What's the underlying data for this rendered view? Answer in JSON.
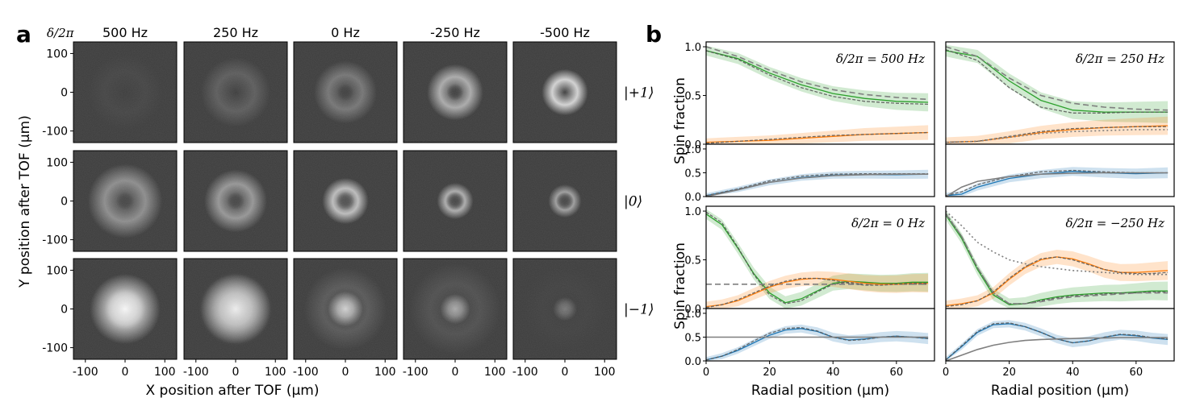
{
  "panel_a": {
    "letter": "a",
    "corner_label": "δ/2π",
    "columns": [
      "500 Hz",
      "250 Hz",
      "0 Hz",
      "-250 Hz",
      "-500 Hz"
    ],
    "rows": [
      "|+1⟩",
      "|0⟩",
      "|−1⟩"
    ],
    "xlabel": "X position after TOF (μm)",
    "ylabel": "Y position after TOF (μm)",
    "xticks": [
      -100,
      0,
      100
    ],
    "yticks": [
      100,
      0,
      -100
    ],
    "images": [
      [
        {
          "core": 0.0,
          "ring": 0.04,
          "ring_r": 0.45
        },
        {
          "core": 0.0,
          "ring": 0.18,
          "ring_r": 0.42
        },
        {
          "core": 0.02,
          "ring": 0.32,
          "ring_r": 0.38
        },
        {
          "core": 0.02,
          "ring": 0.62,
          "ring_r": 0.34
        },
        {
          "core": 0.0,
          "ring": 0.85,
          "ring_r": 0.28
        }
      ],
      [
        {
          "core": 0.05,
          "ring": 0.45,
          "ring_r": 0.45
        },
        {
          "core": 0.05,
          "ring": 0.5,
          "ring_r": 0.38
        },
        {
          "core": 0.1,
          "ring": 0.72,
          "ring_r": 0.28
        },
        {
          "core": 0.05,
          "ring": 0.62,
          "ring_r": 0.22
        },
        {
          "core": 0.05,
          "ring": 0.55,
          "ring_r": 0.2
        }
      ],
      [
        {
          "core": 0.95,
          "ring": 0.25,
          "ring_r": 0.25
        },
        {
          "core": 0.9,
          "ring": 0.15,
          "ring_r": 0.45
        },
        {
          "core": 0.75,
          "ring": 0.15,
          "ring_r": 0.5
        },
        {
          "core": 0.55,
          "ring": 0.1,
          "ring_r": 0.55
        },
        {
          "core": 0.3,
          "ring": 0.02,
          "ring_r": 0.5
        }
      ]
    ]
  },
  "panel_b": {
    "letter": "b",
    "xlabel": "Radial position (μm)",
    "ylabel": "Spin fraction",
    "colors": {
      "green": "#2ca02c",
      "orange": "#ff7f0e",
      "blue": "#1f77b4",
      "gray": "#7f7f7f"
    }
  },
  "chart_data": [
    {
      "type": "line",
      "title": "δ/2π = 500 Hz",
      "xlabel": "",
      "ylabel": "Spin fraction",
      "xlim": [
        0,
        72
      ],
      "ylim": [
        0,
        1.05
      ],
      "yticks": [
        0.0,
        0.5,
        1.0
      ],
      "x": [
        0,
        10,
        20,
        30,
        40,
        50,
        60,
        70
      ],
      "series": [
        {
          "color": "green",
          "style": "solid",
          "band": 0.05,
          "values": [
            0.96,
            0.88,
            0.73,
            0.61,
            0.52,
            0.47,
            0.44,
            0.43
          ]
        },
        {
          "color": "green",
          "style": "dashed",
          "values": [
            0.96,
            0.87,
            0.71,
            0.58,
            0.49,
            0.44,
            0.42,
            0.41
          ]
        },
        {
          "color": "gray",
          "style": "dashed",
          "values": [
            1.0,
            0.9,
            0.76,
            0.64,
            0.56,
            0.51,
            0.48,
            0.46
          ]
        },
        {
          "color": "orange",
          "style": "solid",
          "band": 0.04,
          "values": [
            0.02,
            0.03,
            0.04,
            0.06,
            0.08,
            0.1,
            0.11,
            0.12
          ]
        },
        {
          "color": "orange",
          "style": "dashed",
          "values": [
            0.01,
            0.03,
            0.05,
            0.07,
            0.09,
            0.1,
            0.11,
            0.12
          ]
        }
      ]
    },
    {
      "type": "line",
      "title": "δ/2π = 250 Hz",
      "xlabel": "",
      "ylabel": "",
      "xlim": [
        0,
        72
      ],
      "ylim": [
        0,
        1.05
      ],
      "x": [
        0,
        10,
        20,
        30,
        40,
        50,
        60,
        70
      ],
      "series": [
        {
          "color": "green",
          "style": "solid",
          "band": 0.06,
          "values": [
            0.96,
            0.9,
            0.65,
            0.45,
            0.35,
            0.33,
            0.33,
            0.33
          ]
        },
        {
          "color": "green",
          "style": "dashed",
          "values": [
            0.97,
            0.86,
            0.58,
            0.38,
            0.32,
            0.32,
            0.33,
            0.33
          ]
        },
        {
          "color": "gray",
          "style": "dashed",
          "values": [
            1.0,
            0.9,
            0.68,
            0.5,
            0.42,
            0.38,
            0.36,
            0.35
          ]
        },
        {
          "color": "orange",
          "style": "solid",
          "band": 0.05,
          "values": [
            0.02,
            0.03,
            0.07,
            0.12,
            0.15,
            0.17,
            0.18,
            0.19
          ]
        },
        {
          "color": "orange",
          "style": "dashed",
          "values": [
            0.02,
            0.03,
            0.08,
            0.13,
            0.16,
            0.17,
            0.18,
            0.18
          ]
        },
        {
          "color": "gray",
          "style": "dotted",
          "values": [
            0.02,
            0.03,
            0.07,
            0.11,
            0.13,
            0.14,
            0.15,
            0.15
          ]
        }
      ]
    },
    {
      "type": "line",
      "title": "",
      "xlabel": "",
      "ylabel": "",
      "xlim": [
        0,
        72
      ],
      "ylim": [
        0,
        1.1
      ],
      "yticks": [
        0.0,
        0.5,
        1.0
      ],
      "x": [
        0,
        10,
        20,
        30,
        40,
        50,
        60,
        70
      ],
      "series": [
        {
          "color": "blue",
          "style": "solid",
          "band": 0.05,
          "values": [
            0.02,
            0.15,
            0.3,
            0.4,
            0.45,
            0.46,
            0.46,
            0.47
          ]
        },
        {
          "color": "blue",
          "style": "dashed",
          "values": [
            0.02,
            0.16,
            0.33,
            0.43,
            0.47,
            0.48,
            0.48,
            0.48
          ]
        },
        {
          "color": "gray",
          "style": "solid",
          "values": [
            0.0,
            0.14,
            0.3,
            0.39,
            0.44,
            0.46,
            0.47,
            0.47
          ]
        }
      ]
    },
    {
      "type": "line",
      "title": "",
      "xlabel": "",
      "ylabel": "",
      "xlim": [
        0,
        72
      ],
      "ylim": [
        0,
        1.1
      ],
      "x": [
        0,
        5,
        10,
        20,
        30,
        40,
        50,
        60,
        70
      ],
      "series": [
        {
          "color": "blue",
          "style": "solid",
          "band": 0.06,
          "values": [
            0.02,
            0.05,
            0.2,
            0.38,
            0.47,
            0.53,
            0.5,
            0.48,
            0.5
          ]
        },
        {
          "color": "blue",
          "style": "dashed",
          "values": [
            0.02,
            0.1,
            0.25,
            0.42,
            0.52,
            0.55,
            0.52,
            0.5,
            0.5
          ]
        },
        {
          "color": "gray",
          "style": "solid",
          "values": [
            0.0,
            0.2,
            0.32,
            0.42,
            0.47,
            0.49,
            0.5,
            0.5,
            0.5
          ]
        }
      ]
    },
    {
      "type": "line",
      "title": "δ/2π = 0 Hz",
      "xlabel": "",
      "ylabel": "Spin fraction",
      "xlim": [
        0,
        72
      ],
      "ylim": [
        0,
        1.05
      ],
      "yticks": [
        0.0,
        0.5,
        1.0
      ],
      "x": [
        0,
        5,
        10,
        15,
        20,
        25,
        30,
        35,
        40,
        45,
        50,
        55,
        60,
        65,
        70
      ],
      "series": [
        {
          "color": "green",
          "style": "solid",
          "band": 0.05,
          "values": [
            0.97,
            0.86,
            0.62,
            0.36,
            0.16,
            0.06,
            0.1,
            0.18,
            0.26,
            0.28,
            0.27,
            0.26,
            0.26,
            0.27,
            0.27
          ]
        },
        {
          "color": "green",
          "style": "dashed",
          "values": [
            0.99,
            0.88,
            0.63,
            0.35,
            0.14,
            0.05,
            0.08,
            0.17,
            0.25,
            0.27,
            0.26,
            0.25,
            0.25,
            0.25,
            0.25
          ]
        },
        {
          "color": "gray",
          "style": "dashed",
          "values": [
            0.25,
            0.25,
            0.25,
            0.25,
            0.25,
            0.25,
            0.25,
            0.25,
            0.25,
            0.25,
            0.25,
            0.25,
            0.25,
            0.25,
            0.25
          ]
        },
        {
          "color": "orange",
          "style": "solid",
          "band": 0.05,
          "values": [
            0.02,
            0.04,
            0.08,
            0.15,
            0.22,
            0.27,
            0.3,
            0.31,
            0.3,
            0.28,
            0.26,
            0.25,
            0.25,
            0.26,
            0.26
          ]
        },
        {
          "color": "orange",
          "style": "dashed",
          "values": [
            0.01,
            0.04,
            0.09,
            0.16,
            0.23,
            0.28,
            0.31,
            0.31,
            0.29,
            0.26,
            0.24,
            0.24,
            0.25,
            0.26,
            0.26
          ]
        }
      ]
    },
    {
      "type": "line",
      "title": "δ/2π = −250 Hz",
      "xlabel": "",
      "ylabel": "",
      "xlim": [
        0,
        72
      ],
      "ylim": [
        0,
        1.05
      ],
      "x": [
        0,
        5,
        10,
        15,
        20,
        25,
        30,
        35,
        40,
        45,
        50,
        55,
        60,
        65,
        70
      ],
      "series": [
        {
          "color": "green",
          "style": "solid",
          "band": 0.05,
          "values": [
            0.96,
            0.72,
            0.4,
            0.14,
            0.04,
            0.05,
            0.09,
            0.12,
            0.14,
            0.15,
            0.16,
            0.16,
            0.17,
            0.18,
            0.18
          ]
        },
        {
          "color": "green",
          "style": "dashed",
          "values": [
            0.98,
            0.74,
            0.42,
            0.16,
            0.05,
            0.05,
            0.08,
            0.11,
            0.13,
            0.14,
            0.15,
            0.16,
            0.16,
            0.17,
            0.17
          ]
        },
        {
          "color": "gray",
          "style": "dotted",
          "values": [
            1.0,
            0.85,
            0.68,
            0.58,
            0.5,
            0.46,
            0.43,
            0.41,
            0.39,
            0.38,
            0.37,
            0.36,
            0.35,
            0.35,
            0.35
          ]
        },
        {
          "color": "gray",
          "style": "dashed",
          "values": [
            0.97,
            0.74,
            0.42,
            0.16,
            0.05,
            0.05,
            0.07,
            0.1,
            0.12,
            0.13,
            0.14,
            0.15,
            0.16,
            0.16,
            0.16
          ]
        },
        {
          "color": "orange",
          "style": "solid",
          "band": 0.05,
          "values": [
            0.03,
            0.05,
            0.08,
            0.16,
            0.3,
            0.42,
            0.5,
            0.53,
            0.51,
            0.46,
            0.4,
            0.37,
            0.37,
            0.38,
            0.39
          ]
        },
        {
          "color": "orange",
          "style": "dashed",
          "values": [
            0.02,
            0.04,
            0.08,
            0.17,
            0.31,
            0.43,
            0.51,
            0.53,
            0.5,
            0.45,
            0.4,
            0.37,
            0.36,
            0.36,
            0.37
          ]
        }
      ]
    },
    {
      "type": "line",
      "title": "",
      "xlabel": "Radial position (μm)",
      "ylabel": "",
      "xlim": [
        0,
        72
      ],
      "ylim": [
        0,
        1.1
      ],
      "yticks": [
        0.0,
        0.5,
        1.0
      ],
      "xticks": [
        0,
        20,
        40,
        60
      ],
      "x": [
        0,
        5,
        10,
        15,
        20,
        25,
        30,
        35,
        40,
        45,
        50,
        55,
        60,
        65,
        70
      ],
      "series": [
        {
          "color": "blue",
          "style": "solid",
          "band": 0.06,
          "values": [
            0.02,
            0.1,
            0.22,
            0.38,
            0.54,
            0.65,
            0.68,
            0.62,
            0.5,
            0.44,
            0.46,
            0.5,
            0.52,
            0.5,
            0.47
          ]
        },
        {
          "color": "blue",
          "style": "dashed",
          "values": [
            0.02,
            0.1,
            0.24,
            0.42,
            0.58,
            0.68,
            0.7,
            0.63,
            0.5,
            0.43,
            0.45,
            0.5,
            0.52,
            0.5,
            0.47
          ]
        },
        {
          "color": "gray",
          "style": "solid",
          "values": [
            0.5,
            0.5,
            0.5,
            0.5,
            0.5,
            0.5,
            0.5,
            0.5,
            0.5,
            0.5,
            0.5,
            0.5,
            0.5,
            0.5,
            0.5
          ]
        }
      ]
    },
    {
      "type": "line",
      "title": "",
      "xlabel": "Radial position (μm)",
      "ylabel": "",
      "xlim": [
        0,
        72
      ],
      "ylim": [
        0,
        1.1
      ],
      "xticks": [
        0,
        20,
        40,
        60
      ],
      "x": [
        0,
        5,
        10,
        15,
        20,
        25,
        30,
        35,
        40,
        45,
        50,
        55,
        60,
        65,
        70
      ],
      "series": [
        {
          "color": "blue",
          "style": "solid",
          "band": 0.06,
          "values": [
            0.02,
            0.3,
            0.6,
            0.76,
            0.78,
            0.72,
            0.6,
            0.46,
            0.38,
            0.42,
            0.5,
            0.55,
            0.53,
            0.48,
            0.45
          ]
        },
        {
          "color": "blue",
          "style": "dashed",
          "values": [
            0.02,
            0.32,
            0.62,
            0.78,
            0.8,
            0.72,
            0.6,
            0.46,
            0.38,
            0.42,
            0.5,
            0.56,
            0.54,
            0.49,
            0.46
          ]
        },
        {
          "color": "gray",
          "style": "solid",
          "values": [
            0.0,
            0.12,
            0.24,
            0.33,
            0.39,
            0.43,
            0.45,
            0.46,
            0.47,
            0.48,
            0.48,
            0.49,
            0.49,
            0.49,
            0.49
          ]
        }
      ]
    }
  ]
}
